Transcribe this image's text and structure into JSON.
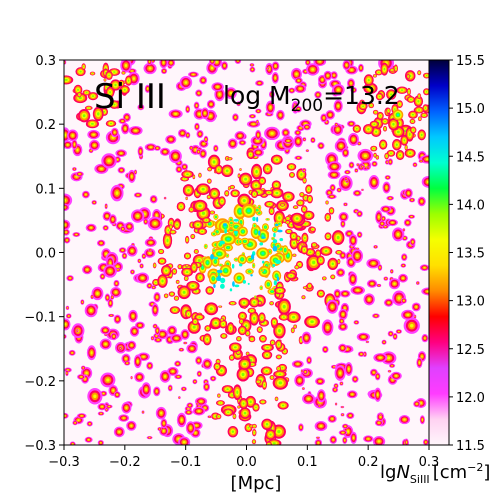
{
  "chart_data": {
    "type": "heatmap",
    "title": "",
    "annotations": {
      "ion": "Si III",
      "mass_label": "log M",
      "mass_sub": "200",
      "mass_value": "=13.2"
    },
    "xlabel": "[Mpc]",
    "ylabel": "",
    "xlim": [
      -0.3,
      0.3
    ],
    "ylim": [
      -0.3,
      0.3
    ],
    "xticks": [
      -0.3,
      -0.2,
      -0.1,
      0.0,
      0.1,
      0.2,
      0.3
    ],
    "yticks": [
      -0.3,
      -0.2,
      -0.1,
      0.0,
      0.1,
      0.2,
      0.3
    ],
    "xtick_labels": [
      "−0.3",
      "−0.2",
      "−0.1",
      "0.0",
      "0.1",
      "0.2",
      "0.3"
    ],
    "ytick_labels": [
      "−0.3",
      "−0.2",
      "−0.1",
      "0.0",
      "0.1",
      "0.2",
      "0.3"
    ],
    "colorbar": {
      "label_main": "lg",
      "label_var": "N",
      "label_sub": "SiIII",
      "label_unit": "[cm",
      "label_exp": "−2",
      "label_close": "]",
      "range": [
        11.5,
        15.5
      ],
      "ticks": [
        11.5,
        12.0,
        12.5,
        13.0,
        13.5,
        14.0,
        14.5,
        15.0,
        15.5
      ],
      "tick_labels": [
        "11.5",
        "12.0",
        "12.5",
        "13.0",
        "13.5",
        "14.0",
        "14.5",
        "15.0",
        "15.5"
      ],
      "colormap": [
        "#fff6fb",
        "#ffd2f2",
        "#ff3cff",
        "#e040ff",
        "#ff0080",
        "#ff0000",
        "#ff8a00",
        "#ffe000",
        "#f5ff00",
        "#9cff00",
        "#00ff40",
        "#00ffd0",
        "#00c8ff",
        "#0060ff",
        "#0000c8",
        "#00003a"
      ]
    },
    "grid": false,
    "colors": {
      "background": "#fff6fb"
    }
  }
}
